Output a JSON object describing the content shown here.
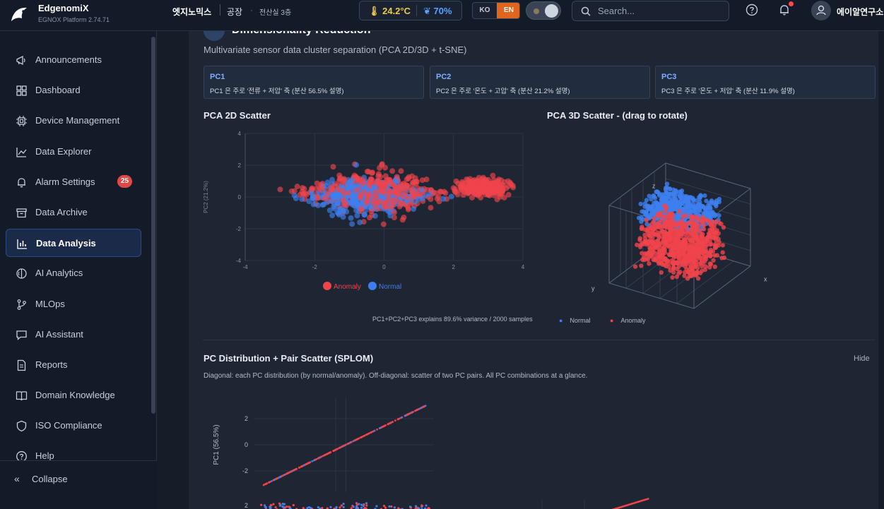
{
  "app": {
    "brand": "EdgenomiX",
    "platform": "EGNOX Platform",
    "version": "2.74.71"
  },
  "breadcrumb": {
    "company": "엣지노믹스",
    "site": "공장",
    "dot": "·",
    "location": "전산실 3층"
  },
  "env": {
    "temperature": "24.2°C",
    "humidity": "70%"
  },
  "lang": {
    "ko": "KO",
    "en": "EN",
    "selected": "EN"
  },
  "search": {
    "placeholder": "Search..."
  },
  "user": {
    "name": "에이알연구소"
  },
  "sidebar": {
    "items": [
      {
        "label": "Announcements",
        "icon": "megaphone-icon"
      },
      {
        "label": "Dashboard",
        "icon": "grid-icon"
      },
      {
        "label": "Device Management",
        "icon": "chip-icon"
      },
      {
        "label": "Data Explorer",
        "icon": "trend-icon"
      },
      {
        "label": "Alarm Settings",
        "icon": "bell-icon",
        "badge": "25"
      },
      {
        "label": "Data Archive",
        "icon": "archive-icon"
      },
      {
        "label": "Data Analysis",
        "icon": "bar-chart-icon",
        "active": true
      },
      {
        "label": "AI Analytics",
        "icon": "brain-icon"
      },
      {
        "label": "MLOps",
        "icon": "branch-icon"
      },
      {
        "label": "AI Assistant",
        "icon": "chat-icon"
      },
      {
        "label": "Reports",
        "icon": "document-icon"
      },
      {
        "label": "Domain Knowledge",
        "icon": "book-icon"
      },
      {
        "label": "ISO Compliance",
        "icon": "shield-icon"
      },
      {
        "label": "Help",
        "icon": "help-icon"
      }
    ],
    "collapse": "Collapse"
  },
  "section": {
    "title": "Dimensionality Reduction",
    "description": "Multivariate sensor data cluster separation (PCA 2D/3D + t-SNE)",
    "pcs": [
      {
        "name": "PC1",
        "desc": "PC1 은 주로 '전류 + 저압' 축 (분산 56.5% 설명)"
      },
      {
        "name": "PC2",
        "desc": "PC2 은 주로 '온도 + 고압' 축 (분산 21.2% 설명)"
      },
      {
        "name": "PC3",
        "desc": "PC3 은 주로 '온도 + 저압' 축 (분산 11.9% 설명)"
      }
    ],
    "scatter2d_title": "PCA 2D Scatter",
    "scatter3d_title": "PCA 3D Scatter - (drag to rotate)",
    "caption": "PC1+PC2+PC3 explains 89.6% variance / 2000 samples",
    "legend3d": {
      "normal": "Normal",
      "anomaly": "Anomaly"
    },
    "splom_title": "PC Distribution + Pair Scatter (SPLOM)",
    "splom_hide": "Hide",
    "splom_desc": "Diagonal: each PC distribution (by normal/anomaly). Off-diagonal: scatter of two PC pairs. All PC combinations at a glance."
  },
  "colors": {
    "normal": "#3d7ff0",
    "anomaly": "#f0444b",
    "accent": "#e0651f"
  },
  "chart_data": [
    {
      "type": "scatter",
      "title": "PCA 2D Scatter",
      "xlabel": "",
      "ylabel": "PC2 (21.2%)",
      "xlim": [
        -4,
        4
      ],
      "ylim": [
        -4,
        4
      ],
      "xticks": [
        "-4",
        "-2",
        "0",
        "2",
        "4"
      ],
      "yticks": [
        "4",
        "2",
        "0",
        "-2",
        "-4"
      ],
      "legend": [
        "Anomaly",
        "Normal"
      ],
      "legend_placement": "bottom",
      "series": [
        {
          "name": "Anomaly",
          "clusters": [
            {
              "cx": -0.3,
              "cy": 0.3,
              "sx": 1.6,
              "sy": 1.3,
              "n": 360
            },
            {
              "cx": 2.9,
              "cy": 0.6,
              "sx": 0.6,
              "sy": 0.5,
              "n": 220
            }
          ]
        },
        {
          "name": "Normal",
          "clusters": [
            {
              "cx": -0.6,
              "cy": 0.0,
              "sx": 1.4,
              "sy": 1.1,
              "n": 320
            }
          ]
        }
      ]
    },
    {
      "type": "scatter",
      "title": "PCA 3D Scatter - (drag to rotate)",
      "axes": [
        "x",
        "y",
        "z"
      ],
      "legend": [
        "Normal",
        "Anomaly"
      ],
      "legend_placement": "bottom"
    },
    {
      "type": "scatter",
      "title": "PC Distribution + Pair Scatter (SPLOM)",
      "ylabel": "PC1 (56.5%)",
      "yticks": [
        "2",
        "0",
        "-2"
      ],
      "diagonal": {
        "x": [
          -3,
          3
        ],
        "y": [
          -3,
          3
        ]
      }
    }
  ]
}
